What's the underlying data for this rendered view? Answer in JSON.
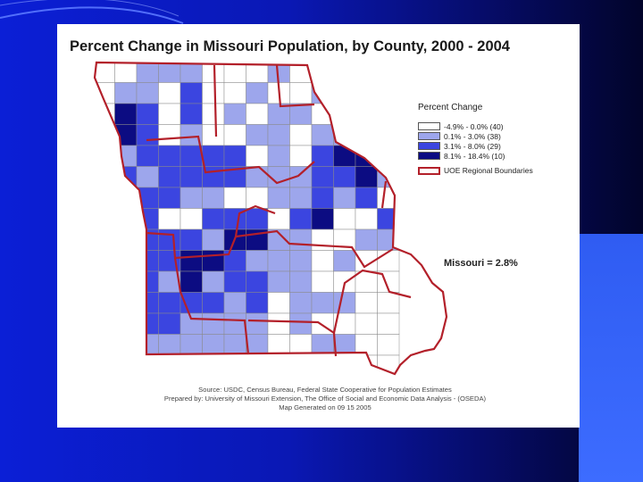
{
  "slide": {
    "background_color": "#0a18b4",
    "accent_color": "#3d6cff"
  },
  "map": {
    "title": "Percent Change in Missouri Population, by County, 2000 - 2004",
    "legend": {
      "title": "Percent Change",
      "classes": [
        {
          "label": "-4.9% - 0.0% (40)",
          "color": "#ffffff"
        },
        {
          "label": "0.1% - 3.0% (38)",
          "color": "#9da6ec"
        },
        {
          "label": "3.1% - 8.0% (29)",
          "color": "#3b45e0"
        },
        {
          "label": "8.1% - 18.4% (10)",
          "color": "#0c0c82"
        }
      ],
      "boundary_label": "UOE Regional Boundaries",
      "boundary_color": "#b3202a"
    },
    "state_total": "Missouri = 2.8%",
    "source_lines": [
      "Source: USDC, Census Bureau, Federal State Cooperative for Population Estimates",
      "Prepared by: University of Missouri Extension, The Office of Social and Economic Data Analysis - (OSEDA)",
      "Map Generated on 09 15 2005"
    ]
  }
}
